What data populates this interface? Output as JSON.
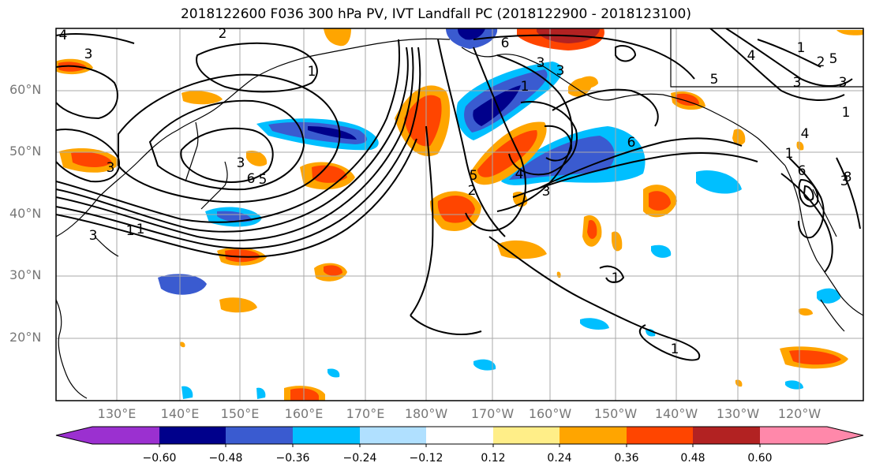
{
  "title": "2018122600 F036 300 hPa PV, IVT Landfall PC (2018122900 - 2018123100)",
  "lat_labels": [
    "60°N",
    "50°N",
    "40°N",
    "30°N",
    "20°N"
  ],
  "lon_labels": [
    "130°E",
    "140°E",
    "150°E",
    "160°E",
    "170°E",
    "180°W",
    "170°W",
    "160°W",
    "150°W",
    "140°W",
    "130°W",
    "120°W"
  ],
  "colorbar": {
    "colors": [
      "#9b30d0",
      "#00008b",
      "#3a5bd0",
      "#00bfff",
      "#b0e0ff",
      "#ffffff",
      "#ffee88",
      "#ffa500",
      "#ff4500",
      "#b22222",
      "#ff88aa"
    ],
    "ticks": [
      "−0.60",
      "−0.48",
      "−0.36",
      "−0.24",
      "−0.12",
      "0.12",
      "0.24",
      "0.36",
      "0.48",
      "0.60"
    ]
  },
  "contour_labels": [
    "4",
    "3",
    "2",
    "1",
    "3",
    "1",
    "6",
    "3",
    "5",
    "6",
    "3",
    "3",
    "1",
    "5",
    "4",
    "3",
    "2",
    "6",
    "1",
    "5",
    "4",
    "1",
    "2",
    "5",
    "3",
    "3",
    "4",
    "1",
    "3",
    "6",
    "8",
    "1",
    "1",
    "3",
    "1"
  ],
  "colors": {
    "grid": "#aaaaaa",
    "contour": "#000000",
    "axis_text": "#777777"
  }
}
